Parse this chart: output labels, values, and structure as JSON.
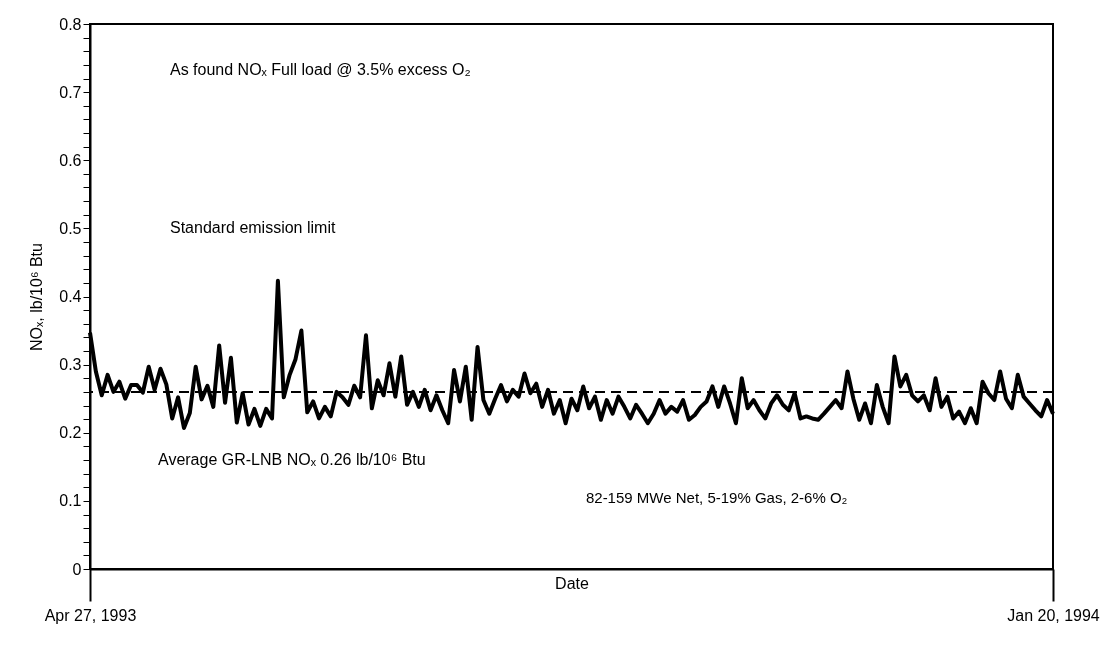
{
  "chart_data": {
    "type": "line",
    "xlabel": "Date",
    "ylabel": "NOₓ,  lb/10⁶ Btu",
    "categories": [
      "Apr 27, 1993",
      null,
      null,
      null,
      null,
      null,
      null,
      null,
      null,
      null,
      null,
      null,
      null,
      null,
      null,
      null,
      null,
      null,
      null,
      null,
      null,
      null,
      null,
      null,
      null,
      null,
      null,
      null,
      null,
      null,
      null,
      null,
      null,
      null,
      null,
      null,
      null,
      null,
      null,
      null,
      null,
      null,
      null,
      null,
      null,
      null,
      null,
      null,
      null,
      null,
      null,
      null,
      null,
      null,
      null,
      null,
      null,
      null,
      null,
      null,
      null,
      null,
      null,
      null,
      null,
      null,
      null,
      null,
      null,
      null,
      null,
      null,
      null,
      null,
      null,
      null,
      null,
      null,
      null,
      null,
      null,
      null,
      null,
      null,
      null,
      null,
      null,
      null,
      null,
      null,
      null,
      null,
      null,
      null,
      null,
      null,
      null,
      null,
      null,
      null,
      null,
      null,
      null,
      null,
      null,
      null,
      null,
      null,
      null,
      null,
      null,
      null,
      null,
      null,
      null,
      null,
      null,
      null,
      null,
      null,
      null,
      null,
      null,
      null,
      null,
      null,
      null,
      null,
      null,
      null,
      null,
      null,
      null,
      null,
      null,
      null,
      null,
      null,
      null,
      null,
      null,
      null,
      null,
      null,
      null,
      null,
      null,
      null,
      null,
      null,
      null,
      null,
      null,
      null,
      null,
      null,
      null,
      null,
      null,
      null,
      null,
      null,
      null,
      null,
      "Jan 20, 1994"
    ],
    "ylim": [
      0,
      0.8
    ],
    "yticks": [
      0,
      {
        "value": 0.02,
        "label": null
      },
      {
        "value": 0.04,
        "label": null
      },
      {
        "value": 0.06,
        "label": null
      },
      {
        "value": 0.08,
        "label": null
      },
      0.1,
      {
        "value": 0.12,
        "label": null
      },
      {
        "value": 0.14,
        "label": null
      },
      {
        "value": 0.16,
        "label": null
      },
      {
        "value": 0.18,
        "label": null
      },
      0.2,
      {
        "value": 0.22,
        "label": null
      },
      {
        "value": 0.24,
        "label": null
      },
      {
        "value": 0.26,
        "label": null
      },
      {
        "value": 0.28,
        "label": null
      },
      0.3,
      {
        "value": 0.32,
        "label": null
      },
      {
        "value": 0.34,
        "label": null
      },
      {
        "value": 0.36,
        "label": null
      },
      {
        "value": 0.38,
        "label": null
      },
      0.4,
      {
        "value": 0.42,
        "label": null
      },
      {
        "value": 0.44,
        "label": null
      },
      {
        "value": 0.46,
        "label": null
      },
      {
        "value": 0.48,
        "label": null
      },
      0.5,
      {
        "value": 0.52,
        "label": null
      },
      {
        "value": 0.54,
        "label": null
      },
      {
        "value": 0.56,
        "label": null
      },
      {
        "value": 0.58,
        "label": null
      },
      0.6,
      {
        "value": 0.62,
        "label": null
      },
      {
        "value": 0.64,
        "label": null
      },
      {
        "value": 0.66,
        "label": null
      },
      {
        "value": 0.68,
        "label": null
      },
      0.7,
      {
        "value": 0.72,
        "label": null
      },
      {
        "value": 0.74,
        "label": null
      },
      {
        "value": 0.76,
        "label": null
      },
      {
        "value": 0.78,
        "label": null
      },
      0.8
    ],
    "series": [
      {
        "color": "#000000",
        "values": [
          0.347,
          0.29,
          0.255,
          0.285,
          0.26,
          0.275,
          0.25,
          0.27,
          0.27,
          0.259,
          0.297,
          0.263,
          0.294,
          0.271,
          0.221,
          0.252,
          0.207,
          0.229,
          0.297,
          0.249,
          0.269,
          0.238,
          0.328,
          0.244,
          0.31,
          0.215,
          0.258,
          0.212,
          0.235,
          0.21,
          0.235,
          0.221,
          0.423,
          0.252,
          0.285,
          0.308,
          0.35,
          0.23,
          0.246,
          0.221,
          0.238,
          0.224,
          0.26,
          0.252,
          0.241,
          0.269,
          0.252,
          0.343,
          0.236,
          0.277,
          0.255,
          0.302,
          0.253,
          0.312,
          0.241,
          0.26,
          0.238,
          0.263,
          0.233,
          0.255,
          0.233,
          0.214,
          0.292,
          0.246,
          0.297,
          0.219,
          0.326,
          0.248,
          0.228,
          0.25,
          0.27,
          0.246,
          0.263,
          0.253,
          0.287,
          0.258,
          0.272,
          0.238,
          0.263,
          0.228,
          0.248,
          0.214,
          0.25,
          0.233,
          0.268,
          0.236,
          0.253,
          0.219,
          0.248,
          0.228,
          0.253,
          0.238,
          0.221,
          0.241,
          0.228,
          0.214,
          0.228,
          0.248,
          0.228,
          0.238,
          0.231,
          0.248,
          0.219,
          0.226,
          0.238,
          0.246,
          0.268,
          0.238,
          0.268,
          0.243,
          0.214,
          0.28,
          0.236,
          0.248,
          0.233,
          0.221,
          0.243,
          0.255,
          0.241,
          0.233,
          0.258,
          0.221,
          0.224,
          0.221,
          0.219,
          0.228,
          0.238,
          0.248,
          0.236,
          0.29,
          0.25,
          0.219,
          0.243,
          0.214,
          0.27,
          0.238,
          0.214,
          0.312,
          0.268,
          0.285,
          0.255,
          0.246,
          0.255,
          0.233,
          0.28,
          0.238,
          0.253,
          0.221,
          0.231,
          0.214,
          0.236,
          0.214,
          0.275,
          0.258,
          0.248,
          0.29,
          0.25,
          0.236,
          0.285,
          0.253,
          0.243,
          0.233,
          0.224,
          0.248,
          0.228
        ]
      }
    ],
    "ref_lines": [
      {
        "axis": "y",
        "value": 0.26,
        "label": "Average GR-LNB NOₓ 0.26 lb/10⁶ Btu",
        "color": "#000000",
        "line_style": "dashed"
      }
    ],
    "annotations": [
      "As found NOₓ  Full load @ 3.5% excess O₂",
      "Standard emission limit",
      "82-159 MWe Net, 5-19% Gas, 2-6% O₂"
    ]
  }
}
